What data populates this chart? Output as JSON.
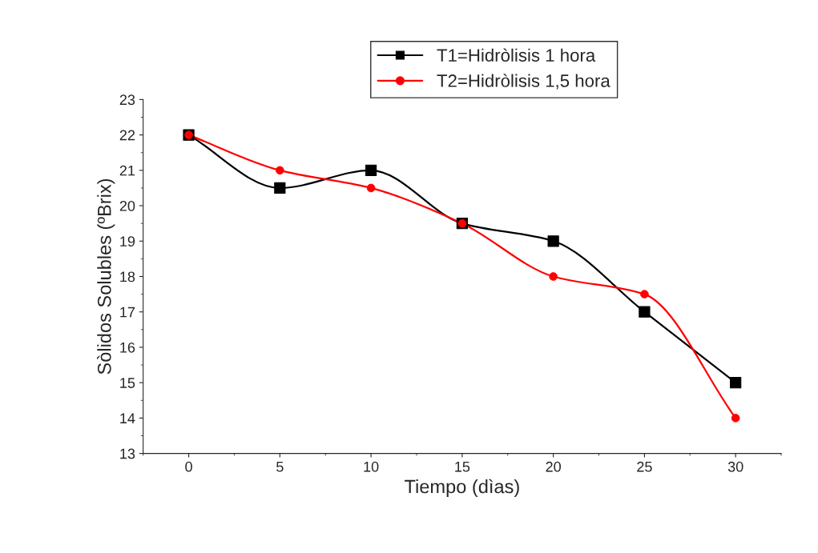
{
  "chart_data": {
    "type": "line",
    "xlabel": "Tiempo (dìas)",
    "ylabel": "Sòlidos Solubles (ºBrix)",
    "x": [
      0,
      5,
      10,
      15,
      20,
      25,
      30
    ],
    "series": [
      {
        "name": "T1=Hidròlisis 1 hora",
        "color": "#000000",
        "marker": "square",
        "values": [
          22,
          20.5,
          21,
          19.5,
          19,
          17,
          15
        ]
      },
      {
        "name": "T2=Hidròlisis 1,5 hora",
        "color": "#ff0000",
        "marker": "circle",
        "values": [
          22,
          21,
          20.5,
          19.5,
          18,
          17.5,
          14
        ]
      }
    ],
    "xlim": [
      -2.5,
      32.5
    ],
    "xticks": [
      0,
      5,
      10,
      15,
      20,
      25,
      30
    ],
    "ylim": [
      13,
      23
    ],
    "yticks": [
      13,
      14,
      15,
      16,
      17,
      18,
      19,
      20,
      21,
      22,
      23
    ],
    "grid": false,
    "legend": "top",
    "line_style": "solid"
  }
}
